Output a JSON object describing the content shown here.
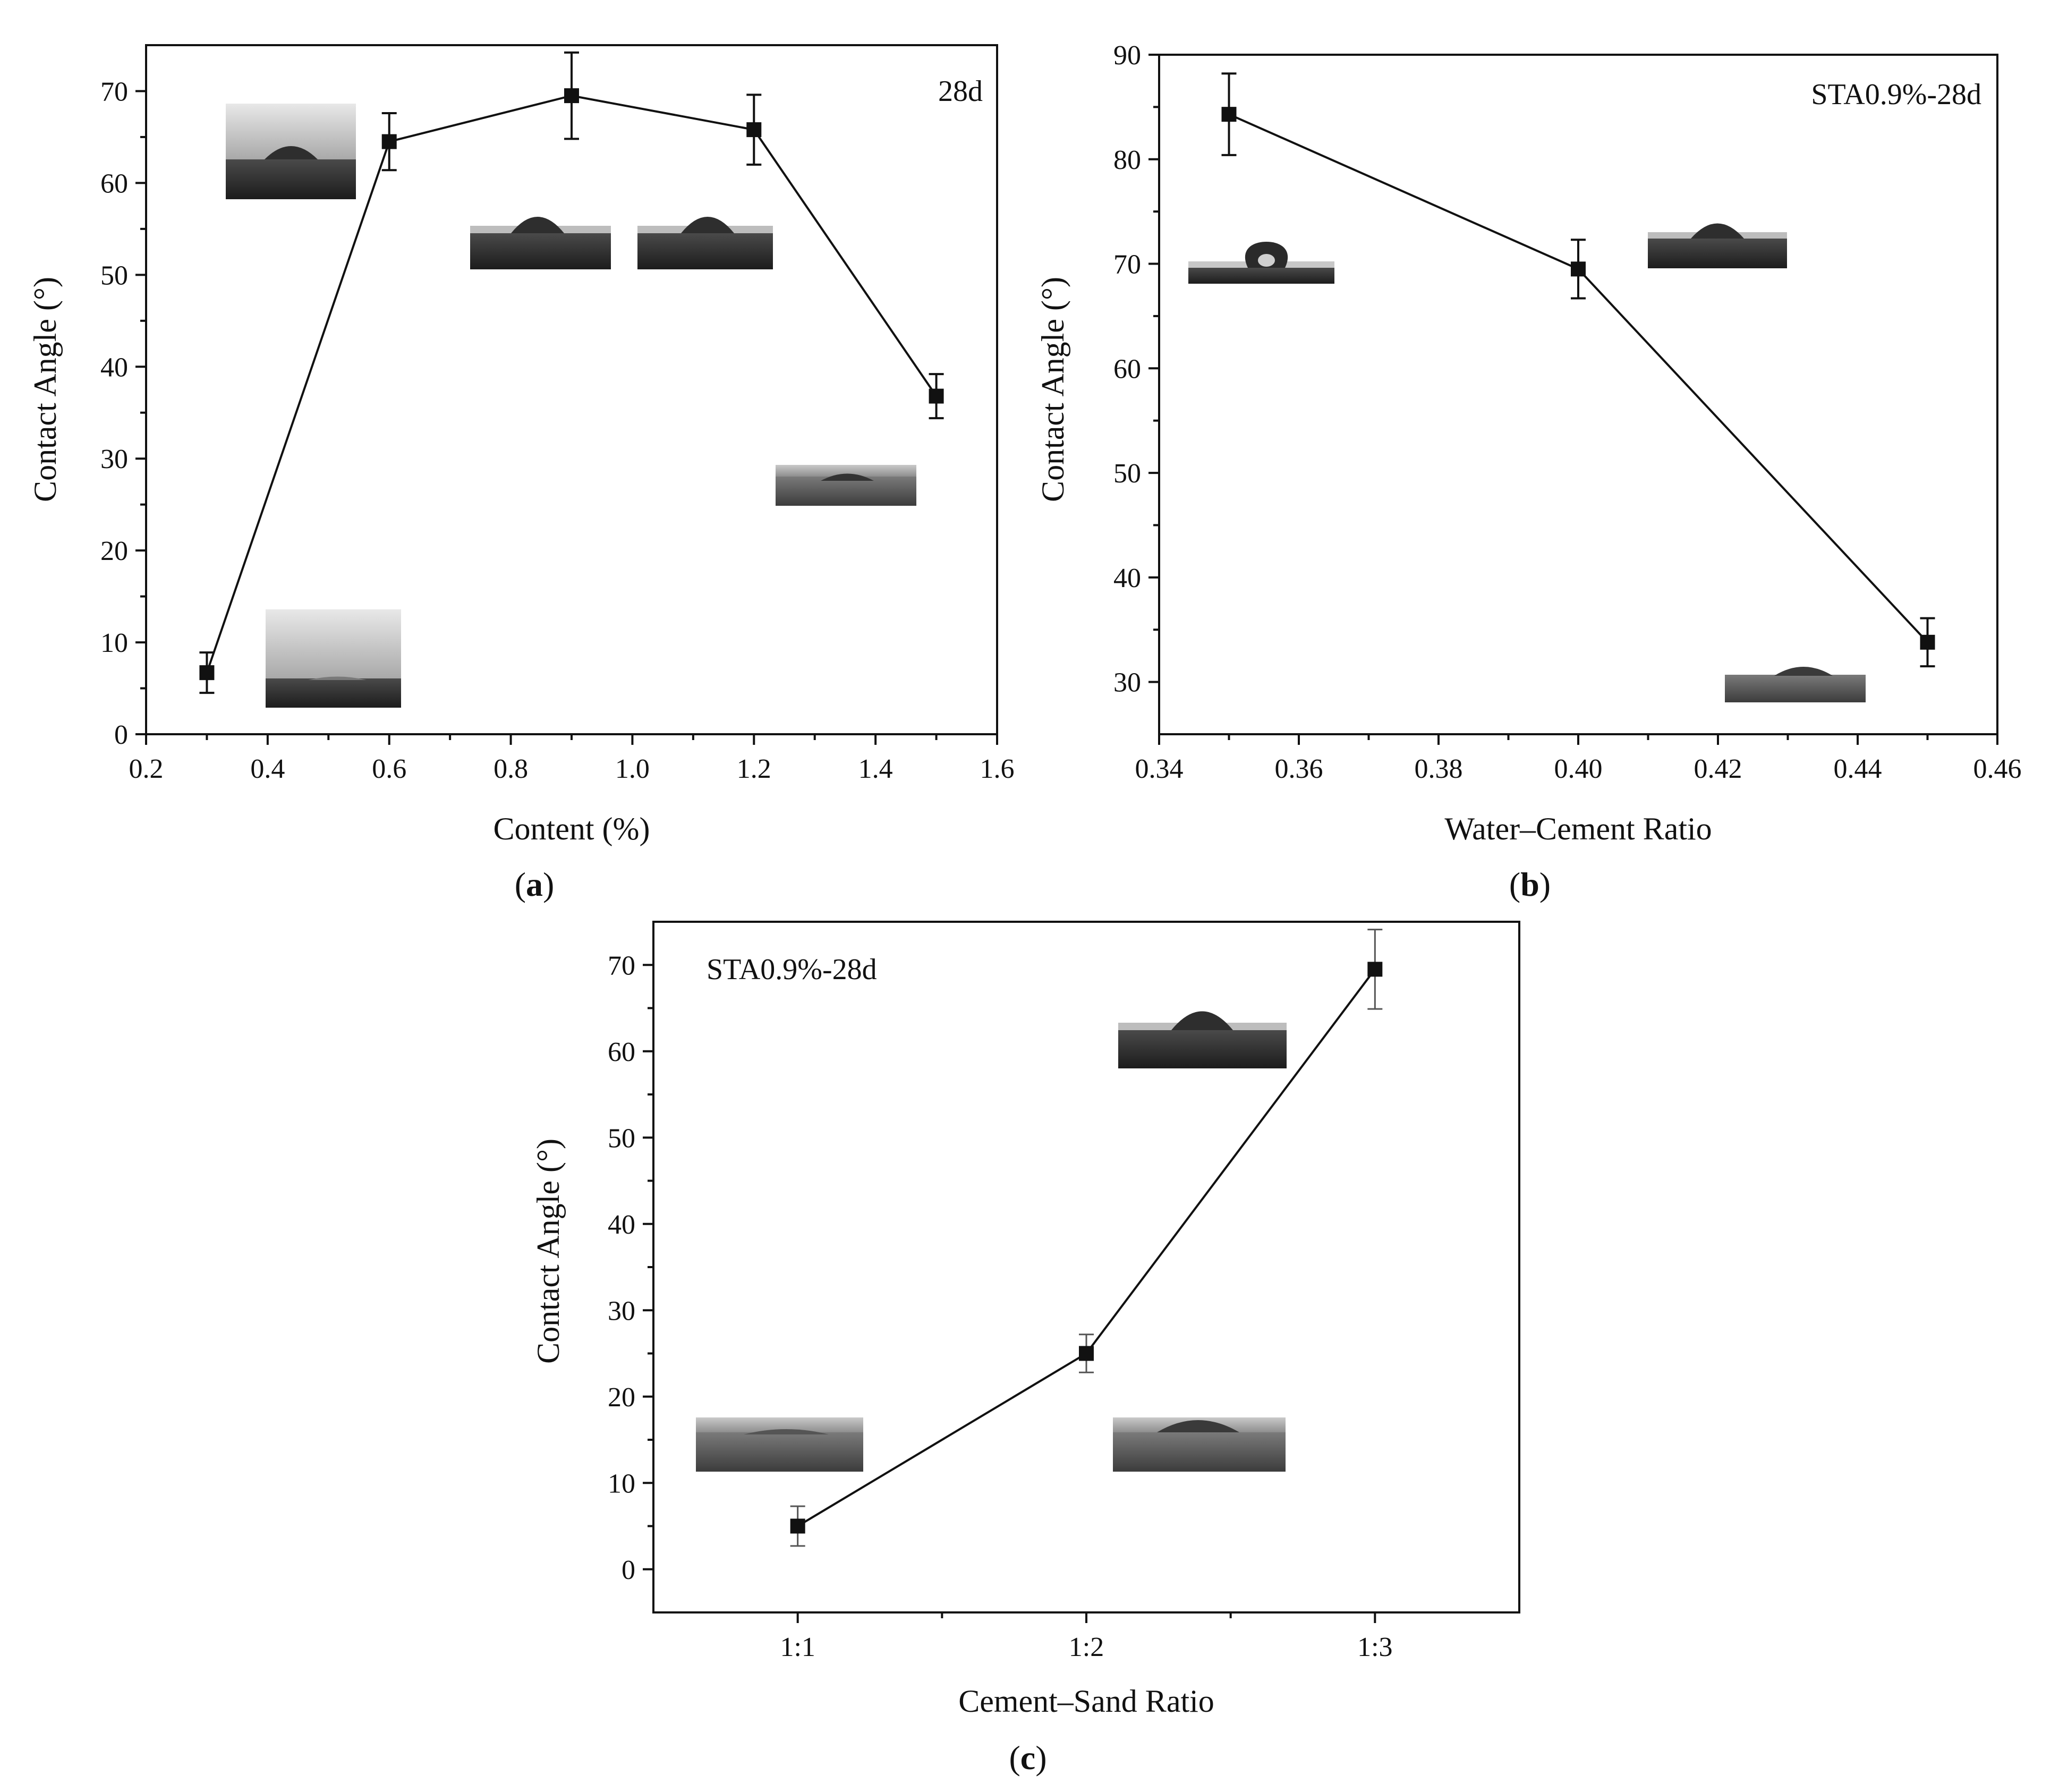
{
  "chart_data": [
    {
      "id": "a",
      "type": "line",
      "panel_label": "(a)",
      "panel_letter": "a",
      "annotation": "28d",
      "xlabel": "Content (%)",
      "ylabel": "Contact Angle (°)",
      "xlim": [
        0.2,
        1.6
      ],
      "ylim": [
        0,
        75
      ],
      "xticks": [
        0.2,
        0.4,
        0.6,
        0.8,
        1.0,
        1.2,
        1.4,
        1.6
      ],
      "xtick_labels": [
        "0.2",
        "0.4",
        "0.6",
        "0.8",
        "1.0",
        "1.2",
        "1.4",
        "1.6"
      ],
      "yticks": [
        0,
        10,
        20,
        30,
        40,
        50,
        60,
        70
      ],
      "ytick_labels": [
        "0",
        "10",
        "20",
        "30",
        "40",
        "50",
        "60",
        "70"
      ],
      "series": [
        {
          "name": "Contact Angle",
          "x": [
            0.3,
            0.6,
            0.9,
            1.2,
            1.5
          ],
          "values": [
            6.7,
            64.5,
            69.5,
            65.8,
            36.8
          ],
          "error": [
            2.2,
            3.1,
            4.7,
            3.8,
            2.4
          ]
        }
      ],
      "insets": [
        "droplet-image",
        "droplet-image",
        "droplet-image",
        "droplet-image",
        "droplet-image"
      ]
    },
    {
      "id": "b",
      "type": "line",
      "panel_label": "(b)",
      "panel_letter": "b",
      "annotation": "STA0.9%-28d",
      "xlabel": "Water–Cement Ratio",
      "ylabel": "Contact Angle (°)",
      "xlim": [
        0.34,
        0.46
      ],
      "ylim": [
        25,
        90
      ],
      "xticks": [
        0.34,
        0.36,
        0.38,
        0.4,
        0.42,
        0.44,
        0.46
      ],
      "xtick_labels": [
        "0.34",
        "0.36",
        "0.38",
        "0.40",
        "0.42",
        "0.44",
        "0.46"
      ],
      "yticks": [
        30,
        40,
        50,
        60,
        70,
        80,
        90
      ],
      "ytick_labels": [
        "30",
        "40",
        "50",
        "60",
        "70",
        "80",
        "90"
      ],
      "series": [
        {
          "name": "Contact Angle",
          "x": [
            0.35,
            0.4,
            0.45
          ],
          "values": [
            84.3,
            69.5,
            33.8
          ],
          "error": [
            3.9,
            2.8,
            2.3
          ]
        }
      ],
      "insets": [
        "droplet-image",
        "droplet-image",
        "droplet-image"
      ]
    },
    {
      "id": "c",
      "type": "line",
      "panel_label": "(c)",
      "panel_letter": "c",
      "annotation": "STA0.9%-28d",
      "xlabel": "Cement–Sand Ratio",
      "ylabel": "Contact Angle (°)",
      "categories": [
        "1:1",
        "1:2",
        "1:3"
      ],
      "xlim": [
        0.5,
        3.5
      ],
      "ylim": [
        -5,
        75
      ],
      "yticks": [
        0,
        10,
        20,
        30,
        40,
        50,
        60,
        70
      ],
      "ytick_labels": [
        "0",
        "10",
        "20",
        "30",
        "40",
        "50",
        "60",
        "70"
      ],
      "series": [
        {
          "name": "Contact Angle",
          "values": [
            5.0,
            25.0,
            69.5
          ],
          "error": [
            2.3,
            2.2,
            4.6
          ]
        }
      ],
      "insets": [
        "droplet-image",
        "droplet-image",
        "droplet-image"
      ]
    }
  ]
}
